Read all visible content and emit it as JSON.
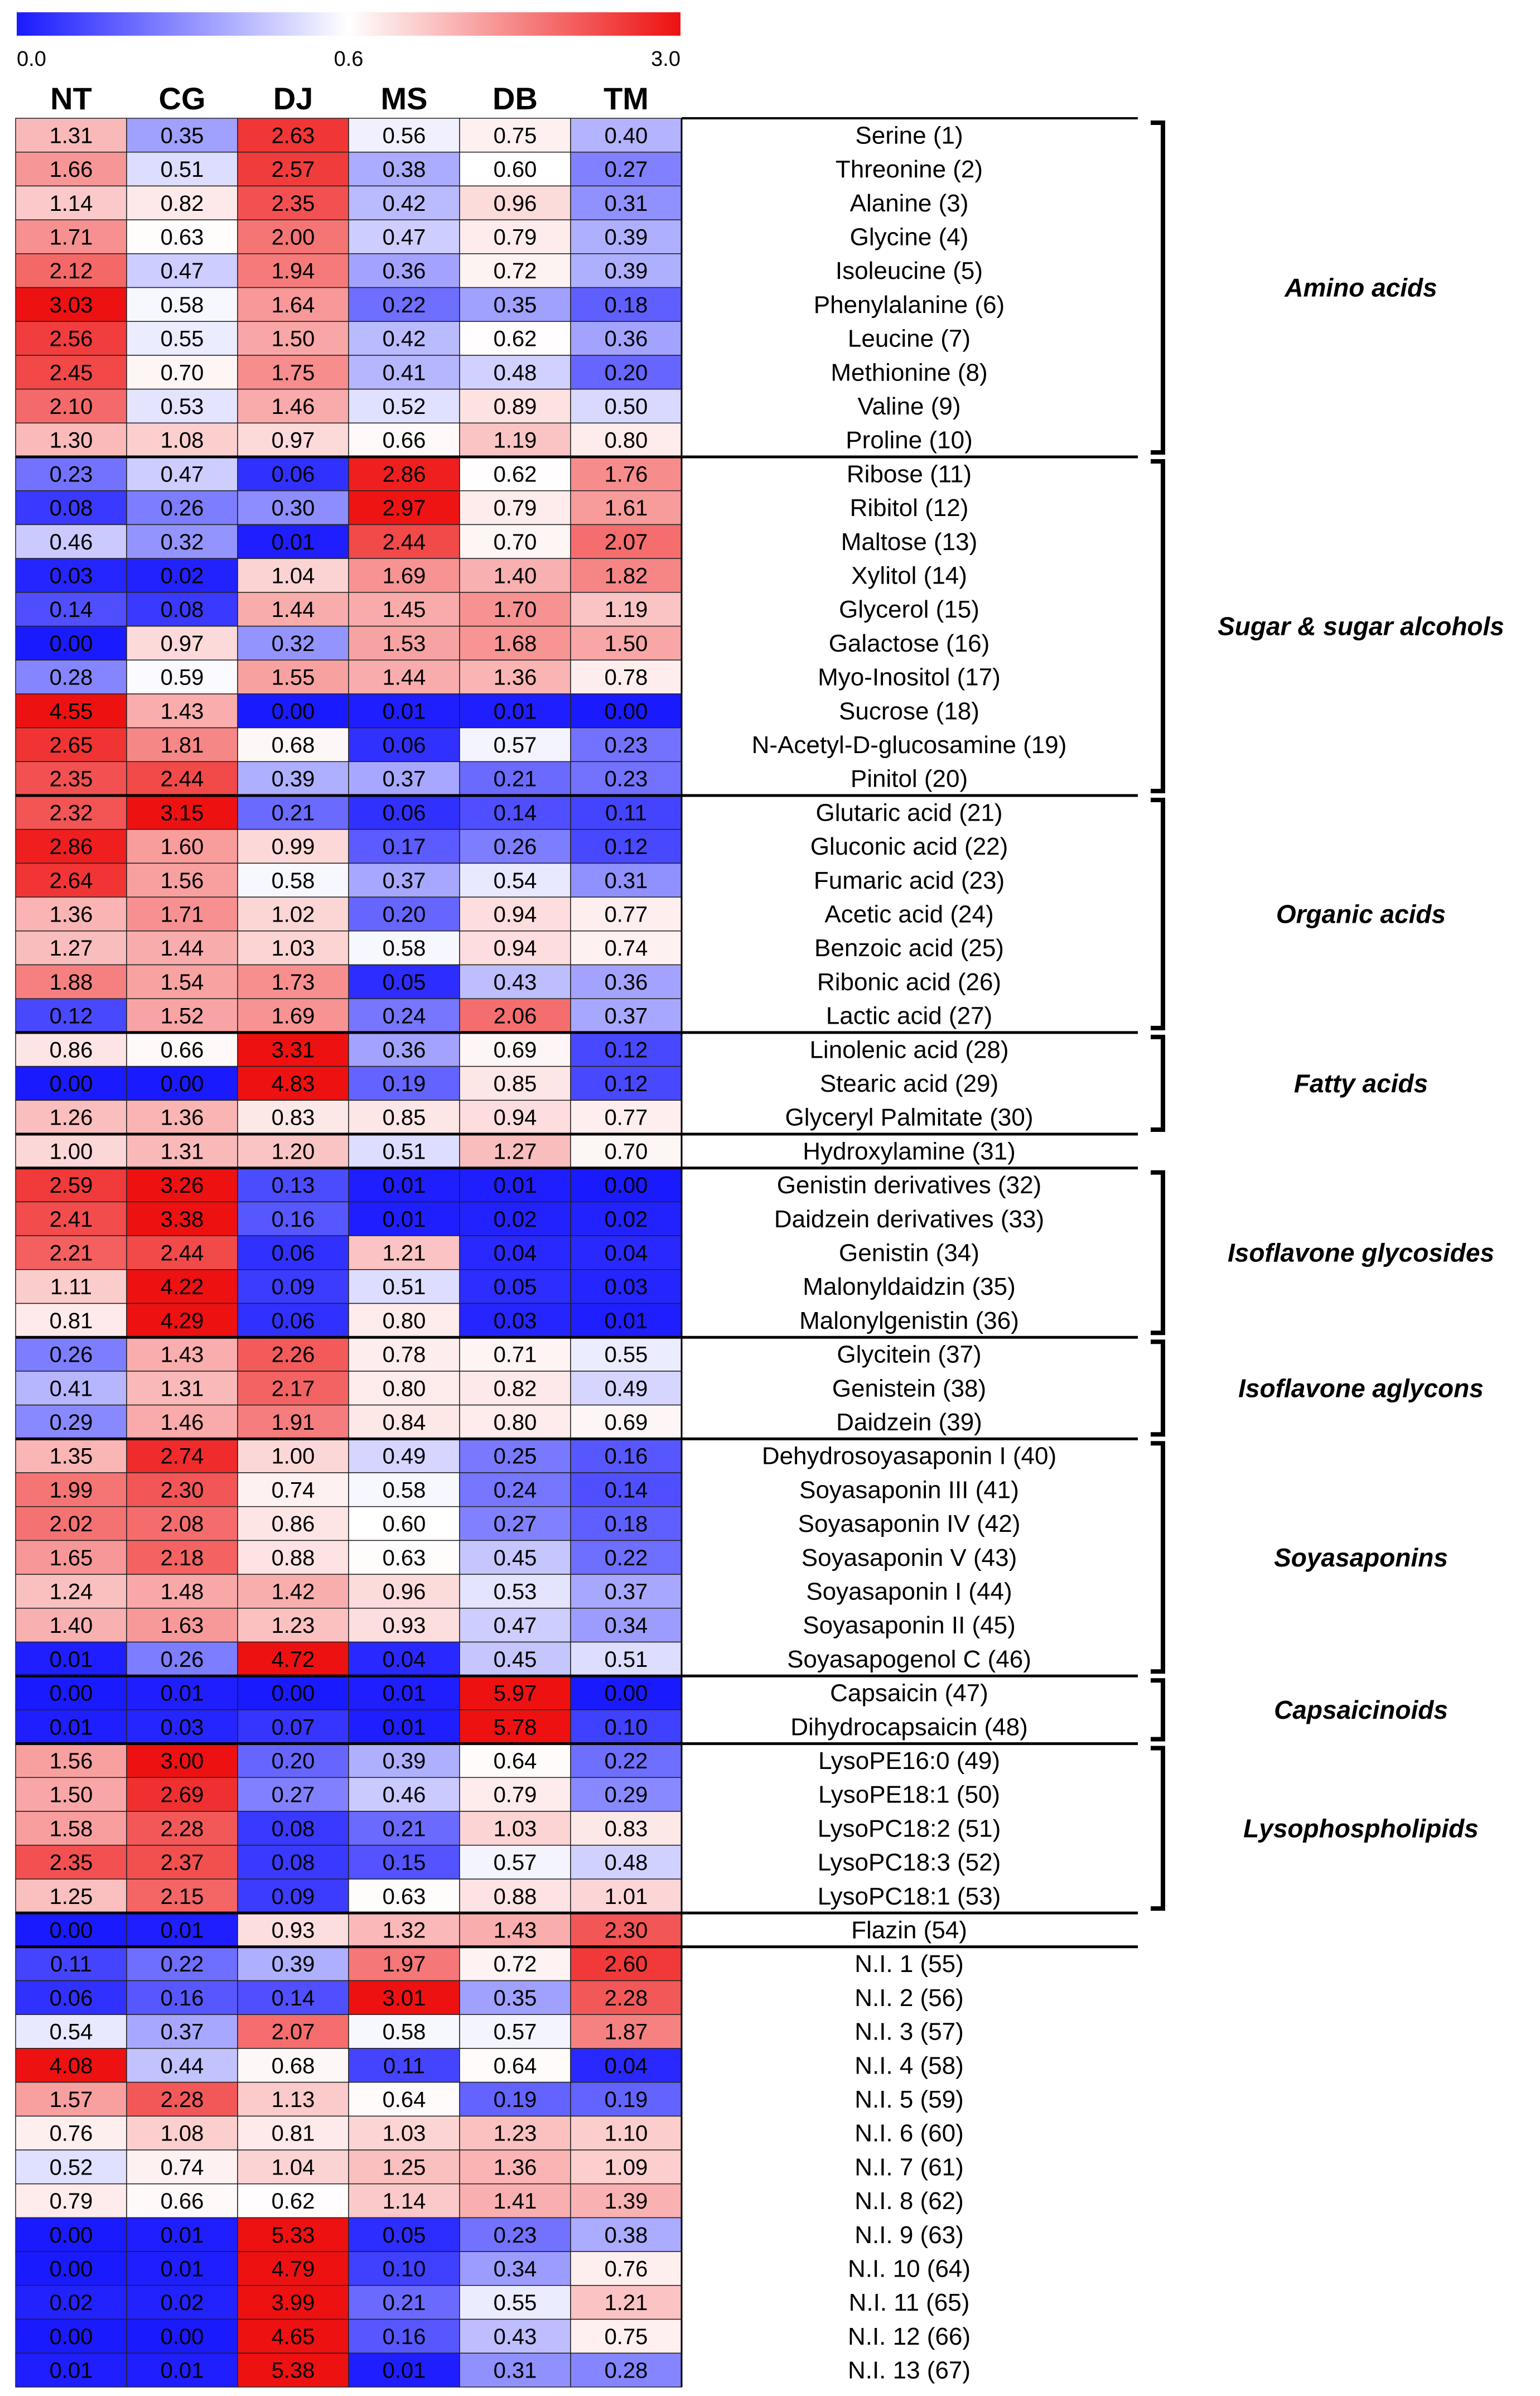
{
  "chart_data": {
    "type": "heatmap",
    "title": "",
    "colorscale": {
      "min_label": "0.0",
      "mid_label": "0.6",
      "max_label": "3.0",
      "min": 0.0,
      "mid": 0.6,
      "max": 3.0,
      "low_color": "#1a1aff",
      "mid_color": "#ffffff",
      "high_color": "#ee1111"
    },
    "columns": [
      "NT",
      "CG",
      "DJ",
      "MS",
      "DB",
      "TM"
    ],
    "rows": [
      {
        "label": "Serine (1)",
        "values": [
          "1.31",
          "0.35",
          "2.63",
          "0.56",
          "0.75",
          "0.40"
        ]
      },
      {
        "label": "Threonine (2)",
        "values": [
          "1.66",
          "0.51",
          "2.57",
          "0.38",
          "0.60",
          "0.27"
        ]
      },
      {
        "label": "Alanine (3)",
        "values": [
          "1.14",
          "0.82",
          "2.35",
          "0.42",
          "0.96",
          "0.31"
        ]
      },
      {
        "label": "Glycine (4)",
        "values": [
          "1.71",
          "0.63",
          "2.00",
          "0.47",
          "0.79",
          "0.39"
        ]
      },
      {
        "label": "Isoleucine (5)",
        "values": [
          "2.12",
          "0.47",
          "1.94",
          "0.36",
          "0.72",
          "0.39"
        ]
      },
      {
        "label": "Phenylalanine (6)",
        "values": [
          "3.03",
          "0.58",
          "1.64",
          "0.22",
          "0.35",
          "0.18"
        ]
      },
      {
        "label": "Leucine (7)",
        "values": [
          "2.56",
          "0.55",
          "1.50",
          "0.42",
          "0.62",
          "0.36"
        ]
      },
      {
        "label": "Methionine (8)",
        "values": [
          "2.45",
          "0.70",
          "1.75",
          "0.41",
          "0.48",
          "0.20"
        ]
      },
      {
        "label": "Valine (9)",
        "values": [
          "2.10",
          "0.53",
          "1.46",
          "0.52",
          "0.89",
          "0.50"
        ]
      },
      {
        "label": "Proline (10)",
        "values": [
          "1.30",
          "1.08",
          "0.97",
          "0.66",
          "1.19",
          "0.80"
        ]
      },
      {
        "label": "Ribose (11)",
        "values": [
          "0.23",
          "0.47",
          "0.06",
          "2.86",
          "0.62",
          "1.76"
        ]
      },
      {
        "label": "Ribitol (12)",
        "values": [
          "0.08",
          "0.26",
          "0.30",
          "2.97",
          "0.79",
          "1.61"
        ]
      },
      {
        "label": "Maltose (13)",
        "values": [
          "0.46",
          "0.32",
          "0.01",
          "2.44",
          "0.70",
          "2.07"
        ]
      },
      {
        "label": "Xylitol (14)",
        "values": [
          "0.03",
          "0.02",
          "1.04",
          "1.69",
          "1.40",
          "1.82"
        ]
      },
      {
        "label": "Glycerol (15)",
        "values": [
          "0.14",
          "0.08",
          "1.44",
          "1.45",
          "1.70",
          "1.19"
        ]
      },
      {
        "label": "Galactose (16)",
        "values": [
          "0.00",
          "0.97",
          "0.32",
          "1.53",
          "1.68",
          "1.50"
        ]
      },
      {
        "label": "Myo-Inositol (17)",
        "values": [
          "0.28",
          "0.59",
          "1.55",
          "1.44",
          "1.36",
          "0.78"
        ]
      },
      {
        "label": "Sucrose (18)",
        "values": [
          "4.55",
          "1.43",
          "0.00",
          "0.01",
          "0.01",
          "0.00"
        ]
      },
      {
        "label": "N-Acetyl-D-glucosamine (19)",
        "values": [
          "2.65",
          "1.81",
          "0.68",
          "0.06",
          "0.57",
          "0.23"
        ]
      },
      {
        "label": "Pinitol (20)",
        "values": [
          "2.35",
          "2.44",
          "0.39",
          "0.37",
          "0.21",
          "0.23"
        ]
      },
      {
        "label": "Glutaric acid (21)",
        "values": [
          "2.32",
          "3.15",
          "0.21",
          "0.06",
          "0.14",
          "0.11"
        ]
      },
      {
        "label": "Gluconic acid (22)",
        "values": [
          "2.86",
          "1.60",
          "0.99",
          "0.17",
          "0.26",
          "0.12"
        ]
      },
      {
        "label": "Fumaric acid (23)",
        "values": [
          "2.64",
          "1.56",
          "0.58",
          "0.37",
          "0.54",
          "0.31"
        ]
      },
      {
        "label": "Acetic acid (24)",
        "values": [
          "1.36",
          "1.71",
          "1.02",
          "0.20",
          "0.94",
          "0.77"
        ]
      },
      {
        "label": "Benzoic acid (25)",
        "values": [
          "1.27",
          "1.44",
          "1.03",
          "0.58",
          "0.94",
          "0.74"
        ]
      },
      {
        "label": "Ribonic acid (26)",
        "values": [
          "1.88",
          "1.54",
          "1.73",
          "0.05",
          "0.43",
          "0.36"
        ]
      },
      {
        "label": "Lactic acid (27)",
        "values": [
          "0.12",
          "1.52",
          "1.69",
          "0.24",
          "2.06",
          "0.37"
        ]
      },
      {
        "label": "Linolenic acid (28)",
        "values": [
          "0.86",
          "0.66",
          "3.31",
          "0.36",
          "0.69",
          "0.12"
        ]
      },
      {
        "label": "Stearic acid (29)",
        "values": [
          "0.00",
          "0.00",
          "4.83",
          "0.19",
          "0.85",
          "0.12"
        ]
      },
      {
        "label": "Glyceryl Palmitate (30)",
        "values": [
          "1.26",
          "1.36",
          "0.83",
          "0.85",
          "0.94",
          "0.77"
        ]
      },
      {
        "label": "Hydroxylamine (31)",
        "values": [
          "1.00",
          "1.31",
          "1.20",
          "0.51",
          "1.27",
          "0.70"
        ]
      },
      {
        "label": "Genistin derivatives (32)",
        "values": [
          "2.59",
          "3.26",
          "0.13",
          "0.01",
          "0.01",
          "0.00"
        ]
      },
      {
        "label": "Daidzein derivatives (33)",
        "values": [
          "2.41",
          "3.38",
          "0.16",
          "0.01",
          "0.02",
          "0.02"
        ]
      },
      {
        "label": "Genistin (34)",
        "values": [
          "2.21",
          "2.44",
          "0.06",
          "1.21",
          "0.04",
          "0.04"
        ]
      },
      {
        "label": "Malonyldaidzin (35)",
        "values": [
          "1.11",
          "4.22",
          "0.09",
          "0.51",
          "0.05",
          "0.03"
        ]
      },
      {
        "label": "Malonylgenistin (36)",
        "values": [
          "0.81",
          "4.29",
          "0.06",
          "0.80",
          "0.03",
          "0.01"
        ]
      },
      {
        "label": "Glycitein (37)",
        "values": [
          "0.26",
          "1.43",
          "2.26",
          "0.78",
          "0.71",
          "0.55"
        ]
      },
      {
        "label": "Genistein (38)",
        "values": [
          "0.41",
          "1.31",
          "2.17",
          "0.80",
          "0.82",
          "0.49"
        ]
      },
      {
        "label": "Daidzein (39)",
        "values": [
          "0.29",
          "1.46",
          "1.91",
          "0.84",
          "0.80",
          "0.69"
        ]
      },
      {
        "label": "Dehydrosoyasaponin I (40)",
        "values": [
          "1.35",
          "2.74",
          "1.00",
          "0.49",
          "0.25",
          "0.16"
        ]
      },
      {
        "label": "Soyasaponin III (41)",
        "values": [
          "1.99",
          "2.30",
          "0.74",
          "0.58",
          "0.24",
          "0.14"
        ]
      },
      {
        "label": "Soyasaponin IV (42)",
        "values": [
          "2.02",
          "2.08",
          "0.86",
          "0.60",
          "0.27",
          "0.18"
        ]
      },
      {
        "label": "Soyasaponin V (43)",
        "values": [
          "1.65",
          "2.18",
          "0.88",
          "0.63",
          "0.45",
          "0.22"
        ]
      },
      {
        "label": "Soyasaponin I (44)",
        "values": [
          "1.24",
          "1.48",
          "1.42",
          "0.96",
          "0.53",
          "0.37"
        ]
      },
      {
        "label": "Soyasaponin II (45)",
        "values": [
          "1.40",
          "1.63",
          "1.23",
          "0.93",
          "0.47",
          "0.34"
        ]
      },
      {
        "label": "Soyasapogenol C (46)",
        "values": [
          "0.01",
          "0.26",
          "4.72",
          "0.04",
          "0.45",
          "0.51"
        ]
      },
      {
        "label": "Capsaicin (47)",
        "values": [
          "0.00",
          "0.01",
          "0.00",
          "0.01",
          "5.97",
          "0.00"
        ]
      },
      {
        "label": "Dihydrocapsaicin (48)",
        "values": [
          "0.01",
          "0.03",
          "0.07",
          "0.01",
          "5.78",
          "0.10"
        ]
      },
      {
        "label": "LysoPE16:0 (49)",
        "values": [
          "1.56",
          "3.00",
          "0.20",
          "0.39",
          "0.64",
          "0.22"
        ]
      },
      {
        "label": "LysoPE18:1 (50)",
        "values": [
          "1.50",
          "2.69",
          "0.27",
          "0.46",
          "0.79",
          "0.29"
        ]
      },
      {
        "label": "LysoPC18:2 (51)",
        "values": [
          "1.58",
          "2.28",
          "0.08",
          "0.21",
          "1.03",
          "0.83"
        ]
      },
      {
        "label": "LysoPC18:3 (52)",
        "values": [
          "2.35",
          "2.37",
          "0.08",
          "0.15",
          "0.57",
          "0.48"
        ]
      },
      {
        "label": "LysoPC18:1 (53)",
        "values": [
          "1.25",
          "2.15",
          "0.09",
          "0.63",
          "0.88",
          "1.01"
        ]
      },
      {
        "label": "Flazin (54)",
        "values": [
          "0.00",
          "0.01",
          "0.93",
          "1.32",
          "1.43",
          "2.30"
        ]
      },
      {
        "label": "N.I. 1 (55)",
        "values": [
          "0.11",
          "0.22",
          "0.39",
          "1.97",
          "0.72",
          "2.60"
        ]
      },
      {
        "label": "N.I. 2 (56)",
        "values": [
          "0.06",
          "0.16",
          "0.14",
          "3.01",
          "0.35",
          "2.28"
        ]
      },
      {
        "label": "N.I. 3 (57)",
        "values": [
          "0.54",
          "0.37",
          "2.07",
          "0.58",
          "0.57",
          "1.87"
        ]
      },
      {
        "label": "N.I. 4 (58)",
        "values": [
          "4.08",
          "0.44",
          "0.68",
          "0.11",
          "0.64",
          "0.04"
        ]
      },
      {
        "label": "N.I. 5 (59)",
        "values": [
          "1.57",
          "2.28",
          "1.13",
          "0.64",
          "0.19",
          "0.19"
        ]
      },
      {
        "label": "N.I. 6 (60)",
        "values": [
          "0.76",
          "1.08",
          "0.81",
          "1.03",
          "1.23",
          "1.10"
        ]
      },
      {
        "label": "N.I. 7 (61)",
        "values": [
          "0.52",
          "0.74",
          "1.04",
          "1.25",
          "1.36",
          "1.09"
        ]
      },
      {
        "label": "N.I. 8 (62)",
        "values": [
          "0.79",
          "0.66",
          "0.62",
          "1.14",
          "1.41",
          "1.39"
        ]
      },
      {
        "label": "N.I. 9 (63)",
        "values": [
          "0.00",
          "0.01",
          "5.33",
          "0.05",
          "0.23",
          "0.38"
        ]
      },
      {
        "label": "N.I. 10 (64)",
        "values": [
          "0.00",
          "0.01",
          "4.79",
          "0.10",
          "0.34",
          "0.76"
        ]
      },
      {
        "label": "N.I. 11 (65)",
        "values": [
          "0.02",
          "0.02",
          "3.99",
          "0.21",
          "0.55",
          "1.21"
        ]
      },
      {
        "label": "N.I. 12 (66)",
        "values": [
          "0.00",
          "0.00",
          "4.65",
          "0.16",
          "0.43",
          "0.75"
        ]
      },
      {
        "label": "N.I. 13 (67)",
        "values": [
          "0.01",
          "0.01",
          "5.38",
          "0.01",
          "0.31",
          "0.28"
        ]
      }
    ],
    "groups": [
      {
        "label": "Amino acids",
        "start": 0,
        "end": 9,
        "bracket": true
      },
      {
        "label": "Sugar & sugar alcohols",
        "start": 10,
        "end": 19,
        "bracket": true
      },
      {
        "label": "Organic acids",
        "start": 20,
        "end": 26,
        "bracket": true
      },
      {
        "label": "Fatty acids",
        "start": 27,
        "end": 29,
        "bracket": true
      },
      {
        "label": "",
        "start": 30,
        "end": 30,
        "bracket": false
      },
      {
        "label": "Isoflavone glycosides",
        "start": 31,
        "end": 35,
        "bracket": true
      },
      {
        "label": "Isoflavone aglycons",
        "start": 36,
        "end": 38,
        "bracket": true
      },
      {
        "label": "Soyasaponins",
        "start": 39,
        "end": 45,
        "bracket": true
      },
      {
        "label": "Capsaicinoids",
        "start": 46,
        "end": 47,
        "bracket": true
      },
      {
        "label": "Lysophospholipids",
        "start": 48,
        "end": 52,
        "bracket": true
      },
      {
        "label": "",
        "start": 53,
        "end": 53,
        "bracket": false
      },
      {
        "label": "",
        "start": 54,
        "end": 66,
        "bracket": false
      }
    ]
  }
}
